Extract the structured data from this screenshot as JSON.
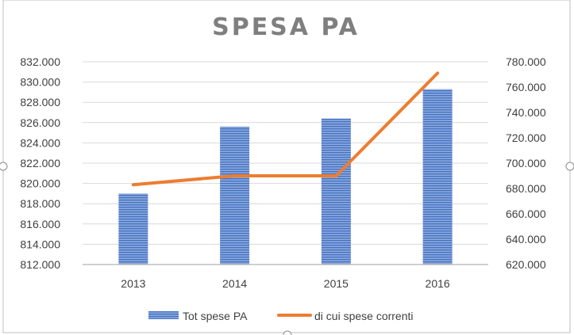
{
  "chart_data": {
    "type": "bar",
    "title": "SPESA PA",
    "categories": [
      "2013",
      "2014",
      "2015",
      "2016"
    ],
    "series": [
      {
        "name": "Tot spese PA",
        "type": "bar",
        "axis": "left",
        "values": [
          819.0,
          825.6,
          826.4,
          829.3
        ],
        "color": "#4472c4"
      },
      {
        "name": "di cui spese correnti",
        "type": "line",
        "axis": "right",
        "values": [
          683,
          690,
          690,
          771
        ],
        "color": "#ed7d31"
      }
    ],
    "y_left": {
      "ylim": [
        812,
        832
      ],
      "ticks": [
        "812.000",
        "814.000",
        "816.000",
        "818.000",
        "820.000",
        "822.000",
        "824.000",
        "826.000",
        "828.000",
        "830.000",
        "832.000"
      ]
    },
    "y_right": {
      "ylim": [
        620,
        780
      ],
      "ticks": [
        "620.000",
        "640.000",
        "660.000",
        "680.000",
        "700.000",
        "720.000",
        "740.000",
        "760.000",
        "780.000"
      ]
    },
    "grid": true,
    "legend_position": "bottom"
  }
}
